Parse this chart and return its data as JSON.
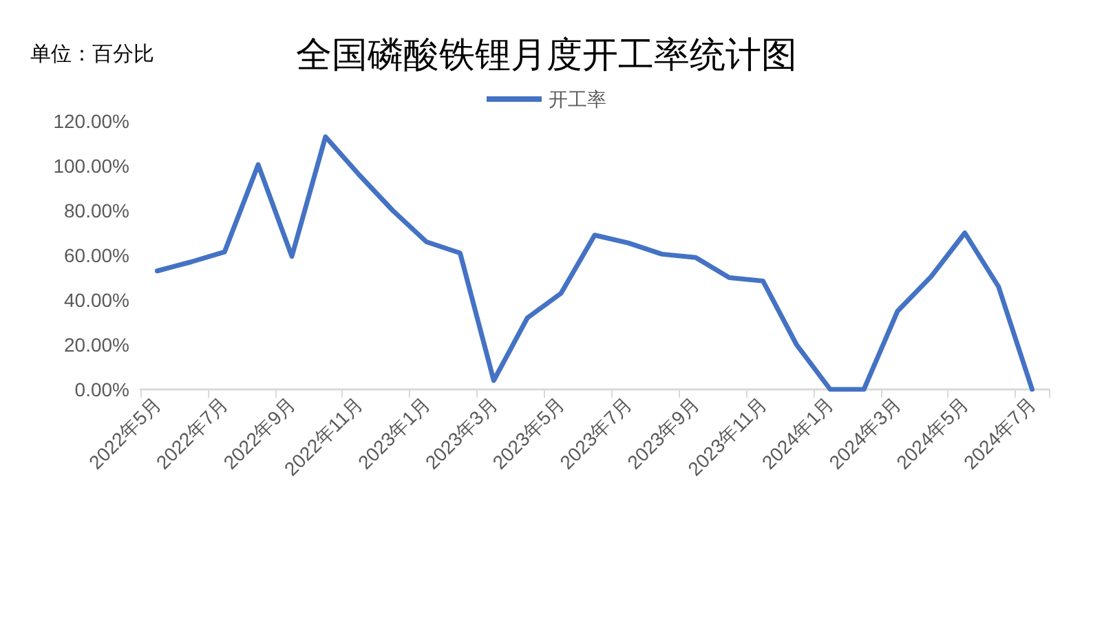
{
  "chart_data": {
    "type": "line",
    "title": "全国磷酸铁锂月度开工率统计图",
    "annotations": [
      "单位：百分比"
    ],
    "categories": [
      "2022年5月",
      null,
      "2022年7月",
      null,
      "2022年9月",
      null,
      "2022年11月",
      null,
      "2023年1月",
      null,
      "2023年3月",
      null,
      "2023年5月",
      null,
      "2023年7月",
      null,
      "2023年9月",
      null,
      "2023年11月",
      null,
      "2024年1月",
      null,
      "2024年3月",
      null,
      "2024年5月",
      null,
      "2024年7月"
    ],
    "series": [
      {
        "name": "开工率",
        "color": "#4472c4",
        "values": [
          53,
          57,
          61.5,
          100.5,
          59.5,
          113,
          96,
          80,
          66,
          61,
          4,
          32,
          43,
          69,
          65.5,
          60.5,
          59,
          50,
          48.5,
          20,
          0,
          0,
          35,
          50.5,
          70,
          46,
          0
        ]
      }
    ],
    "ylim": [
      0,
      120
    ],
    "yticks": [
      {
        "value": 0,
        "label": "0.00%"
      },
      {
        "value": 20,
        "label": "20.00%"
      },
      {
        "value": 40,
        "label": "40.00%"
      },
      {
        "value": 60,
        "label": "60.00%"
      },
      {
        "value": 80,
        "label": "80.00%"
      },
      {
        "value": 100,
        "label": "100.00%"
      },
      {
        "value": 120,
        "label": "120.00%"
      }
    ],
    "legend": "top",
    "grid": false,
    "marker": "none",
    "line_style": "solid"
  }
}
